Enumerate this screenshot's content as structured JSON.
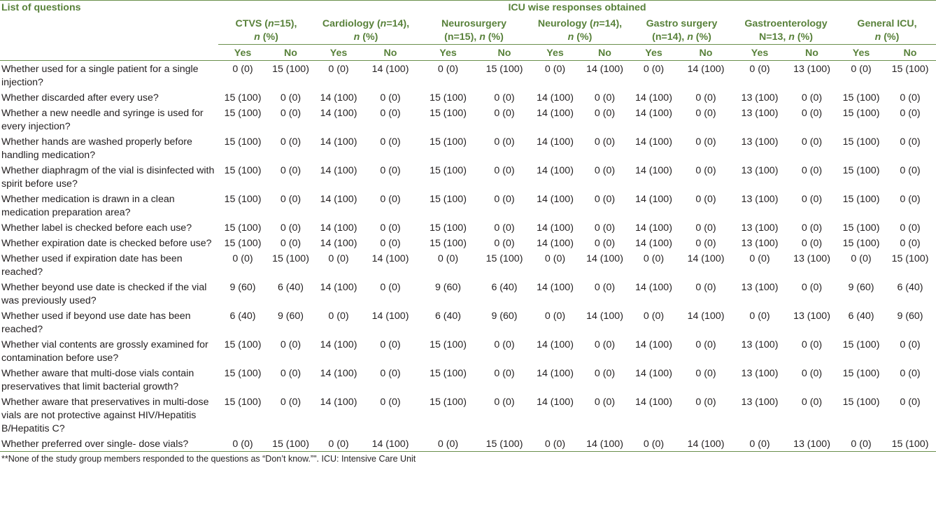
{
  "header": {
    "questions_label": "List of questions",
    "group_label": "ICU wise responses obtained",
    "yes_label": "Yes",
    "no_label": "No",
    "icus": [
      {
        "line1a": "CTVS (",
        "n_sym": "n",
        "line1b": "=15),",
        "line2_sym": "n",
        "line2b": " (%)"
      },
      {
        "line1a": "Cardiology (",
        "n_sym": "n",
        "line1b": "=14),",
        "line2_sym": "n",
        "line2b": " (%)"
      },
      {
        "line1a": "Neurosurgery",
        "n_sym": "",
        "line1b": "",
        "line2_pre": "(n=15), ",
        "line2_sym": "n",
        "line2b": " (%)"
      },
      {
        "line1a": "Neurology (",
        "n_sym": "n",
        "line1b": "=14),",
        "line2_sym": "n",
        "line2b": " (%)"
      },
      {
        "line1a": "Gastro surgery",
        "n_sym": "",
        "line1b": "",
        "line2_pre": "(n=14), ",
        "line2_sym": "n",
        "line2b": " (%)"
      },
      {
        "line1a": "Gastroenterology",
        "n_sym": "",
        "line1b": "",
        "line2_pre": "N=13, ",
        "line2_sym": "n",
        "line2b": " (%)"
      },
      {
        "line1a": "General ICU,",
        "n_sym": "",
        "line1b": "",
        "line2_sym": "n",
        "line2b": " (%)"
      }
    ]
  },
  "rows": [
    {
      "q": "Whether used for a single patient for a single injection?",
      "v": [
        "0 (0)",
        "15 (100)",
        "0 (0)",
        "14 (100)",
        "0 (0)",
        "15 (100)",
        "0 (0)",
        "14 (100)",
        "0 (0)",
        "14 (100)",
        "0 (0)",
        "13 (100)",
        "0 (0)",
        "15 (100)"
      ]
    },
    {
      "q": "Whether discarded after every use?",
      "v": [
        "15 (100)",
        "0 (0)",
        "14 (100)",
        "0 (0)",
        "15 (100)",
        "0 (0)",
        "14 (100)",
        "0 (0)",
        "14 (100)",
        "0 (0)",
        "13 (100)",
        "0 (0)",
        "15 (100)",
        "0 (0)"
      ]
    },
    {
      "q": "Whether a new needle and syringe is used for every injection?",
      "v": [
        "15 (100)",
        "0 (0)",
        "14 (100)",
        "0 (0)",
        "15 (100)",
        "0 (0)",
        "14 (100)",
        "0 (0)",
        "14 (100)",
        "0 (0)",
        "13 (100)",
        "0 (0)",
        "15 (100)",
        "0 (0)"
      ]
    },
    {
      "q": "Whether hands are washed properly before handling medication?",
      "v": [
        "15 (100)",
        "0 (0)",
        "14 (100)",
        "0 (0)",
        "15 (100)",
        "0 (0)",
        "14 (100)",
        "0 (0)",
        "14 (100)",
        "0 (0)",
        "13 (100)",
        "0 (0)",
        "15 (100)",
        "0 (0)"
      ]
    },
    {
      "q": "Whether diaphragm of the vial is disinfected with spirit before use?",
      "v": [
        "15 (100)",
        "0 (0)",
        "14 (100)",
        "0 (0)",
        "15 (100)",
        "0 (0)",
        "14 (100)",
        "0 (0)",
        "14 (100)",
        "0 (0)",
        "13 (100)",
        "0 (0)",
        "15 (100)",
        "0 (0)"
      ]
    },
    {
      "q": "Whether medication is drawn in a clean medication preparation area?",
      "v": [
        "15 (100)",
        "0 (0)",
        "14 (100)",
        "0 (0)",
        "15 (100)",
        "0 (0)",
        "14 (100)",
        "0 (0)",
        "14 (100)",
        "0 (0)",
        "13 (100)",
        "0 (0)",
        "15 (100)",
        "0 (0)"
      ]
    },
    {
      "q": "Whether label is checked before each use?",
      "v": [
        "15 (100)",
        "0 (0)",
        "14 (100)",
        "0 (0)",
        "15 (100)",
        "0 (0)",
        "14 (100)",
        "0 (0)",
        "14 (100)",
        "0 (0)",
        "13 (100)",
        "0 (0)",
        "15 (100)",
        "0 (0)"
      ]
    },
    {
      "q": "Whether expiration date is checked before use?",
      "v": [
        "15 (100)",
        "0 (0)",
        "14 (100)",
        "0 (0)",
        "15 (100)",
        "0 (0)",
        "14 (100)",
        "0 (0)",
        "14 (100)",
        "0 (0)",
        "13 (100)",
        "0 (0)",
        "15 (100)",
        "0 (0)"
      ]
    },
    {
      "q": "Whether used if expiration date has been reached?",
      "v": [
        "0 (0)",
        "15 (100)",
        "0 (0)",
        "14 (100)",
        "0 (0)",
        "15 (100)",
        "0 (0)",
        "14 (100)",
        "0 (0)",
        "14 (100)",
        "0 (0)",
        "13 (100)",
        "0 (0)",
        "15 (100)"
      ]
    },
    {
      "q": "Whether beyond use date is checked if the vial was previously used?",
      "v": [
        "9 (60)",
        "6 (40)",
        "14 (100)",
        "0 (0)",
        "9 (60)",
        "6 (40)",
        "14 (100)",
        "0 (0)",
        "14 (100)",
        "0 (0)",
        "13 (100)",
        "0 (0)",
        "9 (60)",
        "6 (40)"
      ]
    },
    {
      "q": "Whether used if beyond use date has been reached?",
      "v": [
        "6 (40)",
        "9 (60)",
        "0 (0)",
        "14 (100)",
        "6 (40)",
        "9 (60)",
        "0 (0)",
        "14 (100)",
        "0 (0)",
        "14 (100)",
        "0 (0)",
        "13 (100)",
        "6 (40)",
        "9 (60)"
      ]
    },
    {
      "q": "Whether vial contents are grossly examined for contamination before use?",
      "v": [
        "15 (100)",
        "0 (0)",
        "14 (100)",
        "0 (0)",
        "15 (100)",
        "0 (0)",
        "14 (100)",
        "0 (0)",
        "14 (100)",
        "0 (0)",
        "13 (100)",
        "0 (0)",
        "15 (100)",
        "0 (0)"
      ]
    },
    {
      "q": "Whether aware that multi-dose vials contain preservatives that limit bacterial growth?",
      "v": [
        "15 (100)",
        "0 (0)",
        "14 (100)",
        "0 (0)",
        "15 (100)",
        "0 (0)",
        "14 (100)",
        "0 (0)",
        "14 (100)",
        "0 (0)",
        "13 (100)",
        "0 (0)",
        "15 (100)",
        "0 (0)"
      ]
    },
    {
      "q": "Whether aware that preservatives in multi-dose vials are not protective against HIV/Hepatitis B/Hepatitis C?",
      "v": [
        "15 (100)",
        "0 (0)",
        "14 (100)",
        "0 (0)",
        "15 (100)",
        "0 (0)",
        "14 (100)",
        "0 (0)",
        "14 (100)",
        "0 (0)",
        "13 (100)",
        "0 (0)",
        "15 (100)",
        "0 (0)"
      ]
    },
    {
      "q": "Whether preferred over single- dose vials?",
      "v": [
        "0 (0)",
        "15 (100)",
        "0 (0)",
        "14 (100)",
        "0 (0)",
        "15 (100)",
        "0 (0)",
        "14 (100)",
        "0 (0)",
        "14 (100)",
        "0 (0)",
        "13 (100)",
        "0 (0)",
        "15 (100)"
      ]
    }
  ],
  "footnote": "**None of the study group members responded to the questions as “Don’t know.”\". ICU: Intensive Care Unit"
}
